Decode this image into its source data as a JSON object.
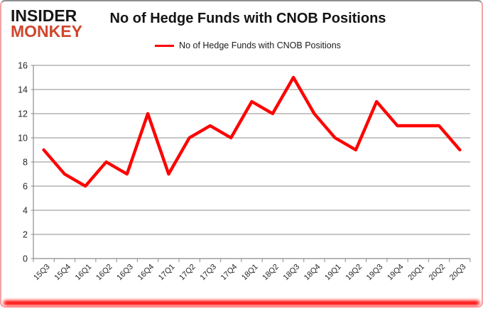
{
  "logo": {
    "line1": "INSIDER",
    "line2": "MONKEY"
  },
  "colors": {
    "line": "#ff0000",
    "grid": "#8c8c8c",
    "axis": "#8c8c8c",
    "tick_text": "#262626",
    "logo_black": "#161616",
    "logo_red": "#d0452d",
    "glow": "#ff0000"
  },
  "chart_data": {
    "type": "line",
    "title": "No of Hedge Funds with CNOB Positions",
    "legend": "No of Hedge Funds with CNOB Positions",
    "legend_position": "top",
    "grid": true,
    "categories": [
      "15Q3",
      "15Q4",
      "16Q1",
      "16Q2",
      "16Q3",
      "16Q4",
      "17Q1",
      "17Q2",
      "17Q3",
      "17Q4",
      "18Q1",
      "18Q2",
      "18Q3",
      "18Q4",
      "19Q1",
      "19Q2",
      "19Q3",
      "19Q4",
      "20Q1",
      "20Q2",
      "20Q3"
    ],
    "series": [
      {
        "name": "No of Hedge Funds with CNOB Positions",
        "values": [
          9,
          7,
          6,
          8,
          7,
          12,
          7,
          10,
          11,
          10,
          13,
          12,
          15,
          12,
          10,
          9,
          13,
          11,
          11,
          11,
          9
        ]
      }
    ],
    "ylim": [
      0,
      16
    ],
    "ytick_step": 2,
    "xlabel": "",
    "ylabel": ""
  }
}
